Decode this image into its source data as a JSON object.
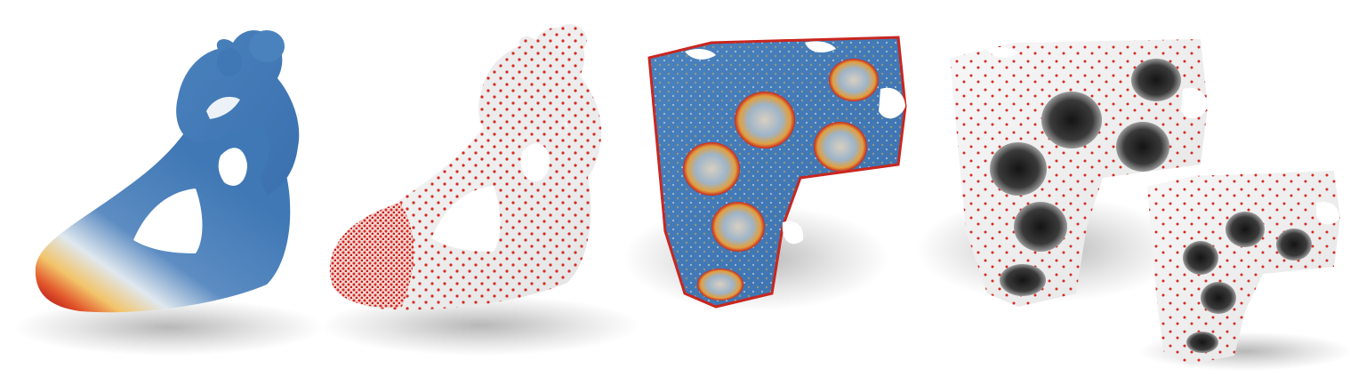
{
  "figure": {
    "panels": [
      {
        "name": "heatmap-sculpture",
        "colormap": [
          "#3f78b5",
          "#e6eef5",
          "#f2c46a",
          "#e2572b",
          "#b71c1c"
        ]
      },
      {
        "name": "sampled-sculpture",
        "base_color": "#efefef",
        "dot_color": "#d62a22"
      },
      {
        "name": "heatmap-gyroid-block",
        "colormap": [
          "#3f78b5",
          "#e8ecef",
          "#e2b15a",
          "#c9261f"
        ]
      },
      {
        "name": "sampled-gyroid-blocks",
        "base_color": "#f2f2f2",
        "hole_color": "#2c2c2c",
        "dot_color": "#d62a22"
      }
    ]
  }
}
